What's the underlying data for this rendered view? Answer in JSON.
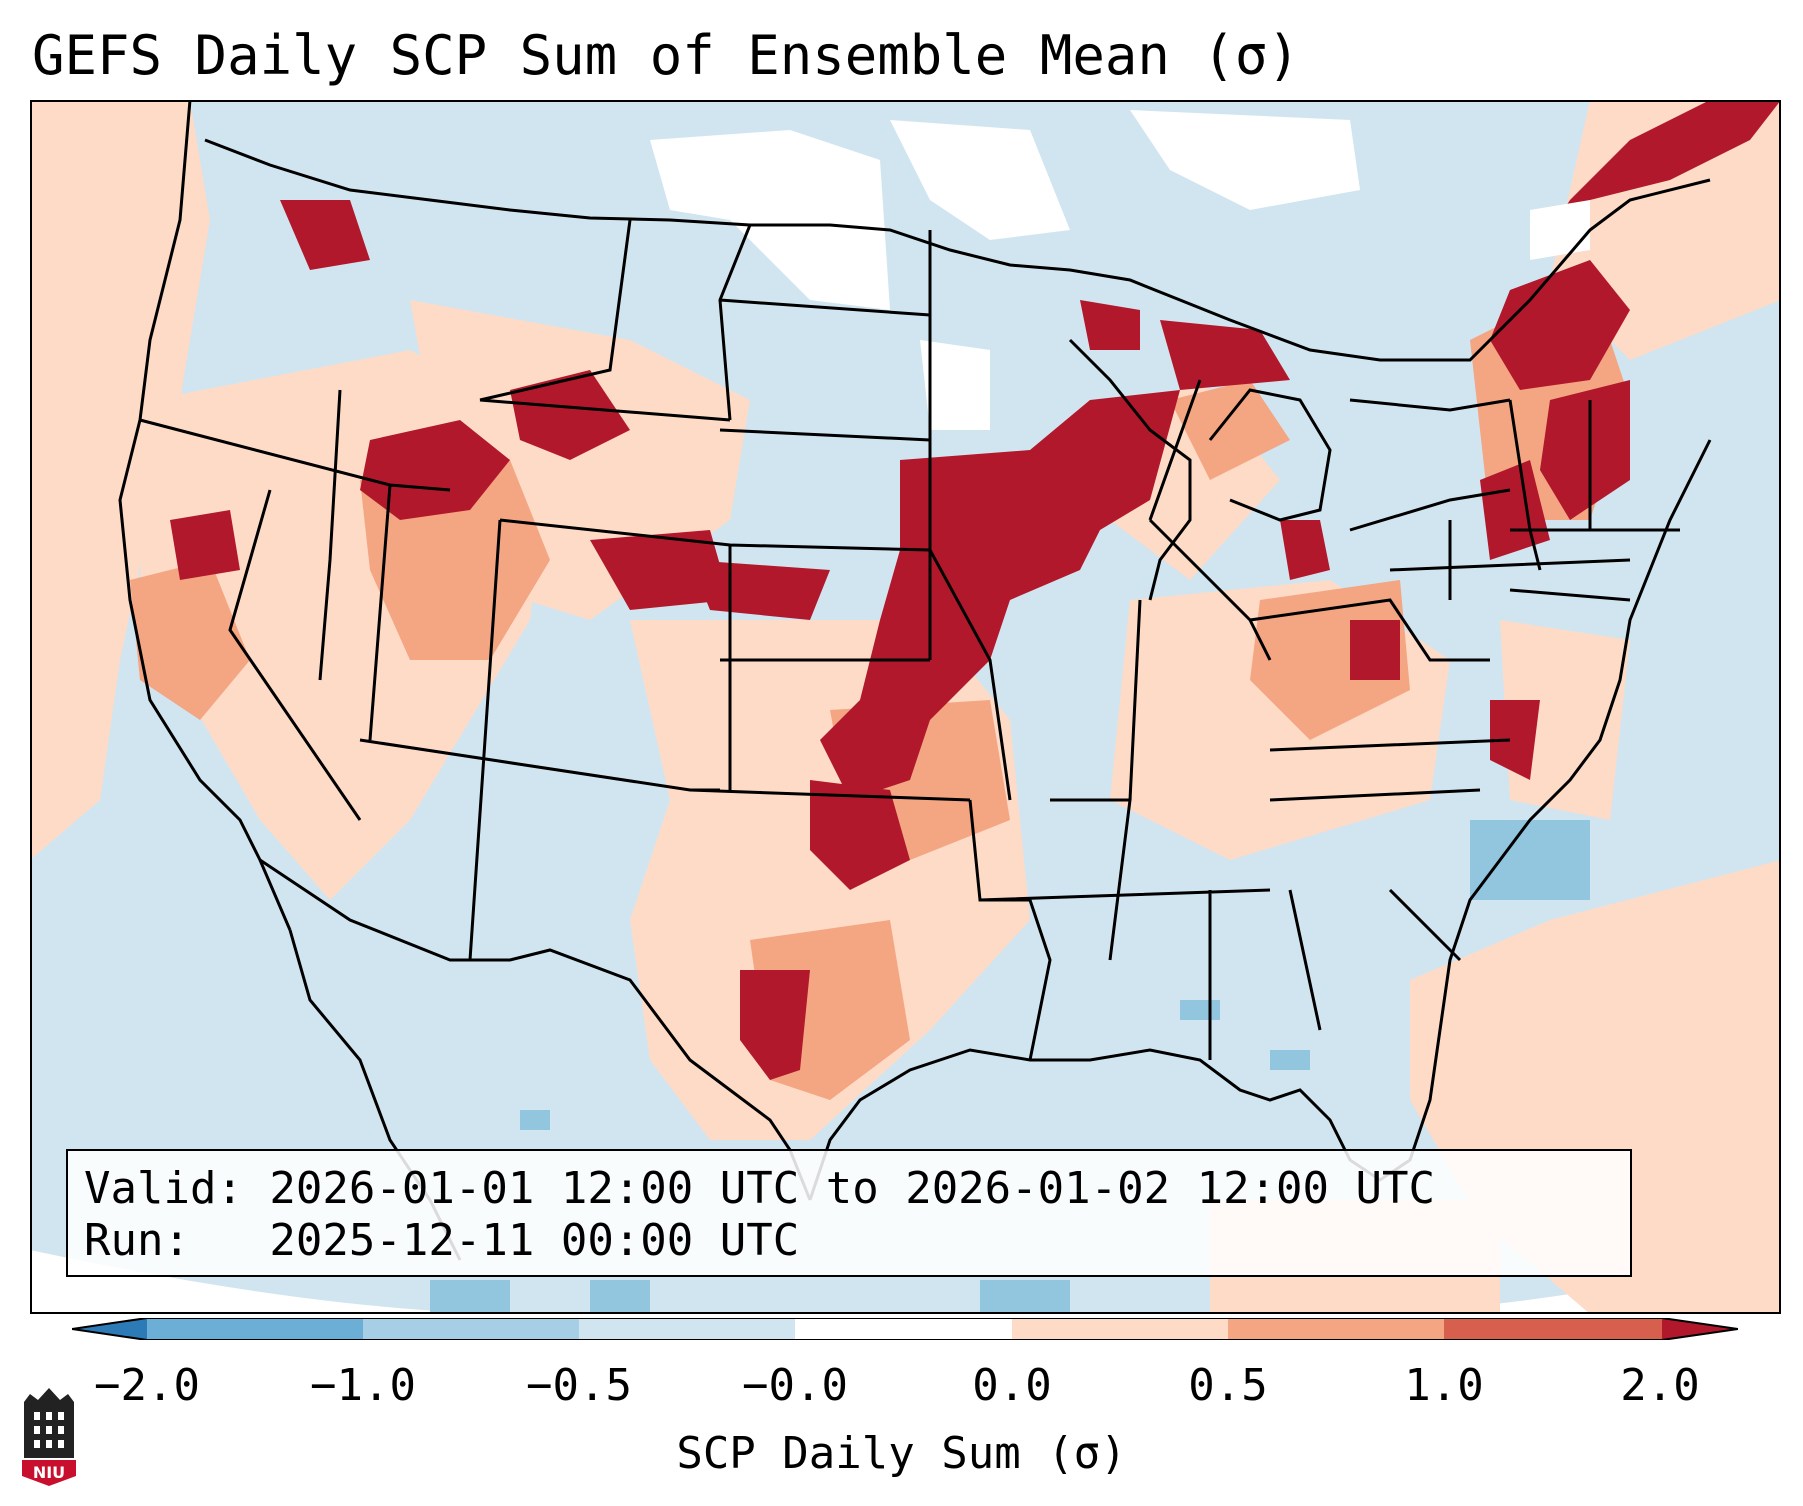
{
  "header": {
    "title": "GEFS Daily SCP Sum of Ensemble Mean (σ)"
  },
  "info": {
    "valid_line": "Valid: 2026-01-01 12:00 UTC to 2026-01-02 12:00 UTC",
    "run_line": "Run:   2025-12-11 00:00 UTC"
  },
  "colorbar": {
    "label": "SCP Daily Sum (σ)",
    "ticks": [
      "−2.0",
      "−1.0",
      "−0.5",
      "−0.0",
      "0.0",
      "0.5",
      "1.0",
      "2.0"
    ],
    "colors": [
      "#2c7bb6",
      "#6baed6",
      "#a6cfe5",
      "#d1e5f0",
      "#ffffff",
      "#fddbc7",
      "#f4a582",
      "#d6604d",
      "#b2182b"
    ]
  },
  "logo": {
    "text": "NIU"
  },
  "map": {
    "region": "CONUS",
    "field_colors": {
      "neg_weak": "#d1e5f0",
      "neg_mod": "#92c5de",
      "pos_weak": "#fddbc7",
      "pos_mod": "#f4a582",
      "pos_strong": "#d6604d",
      "pos_max": "#b2182b"
    }
  }
}
